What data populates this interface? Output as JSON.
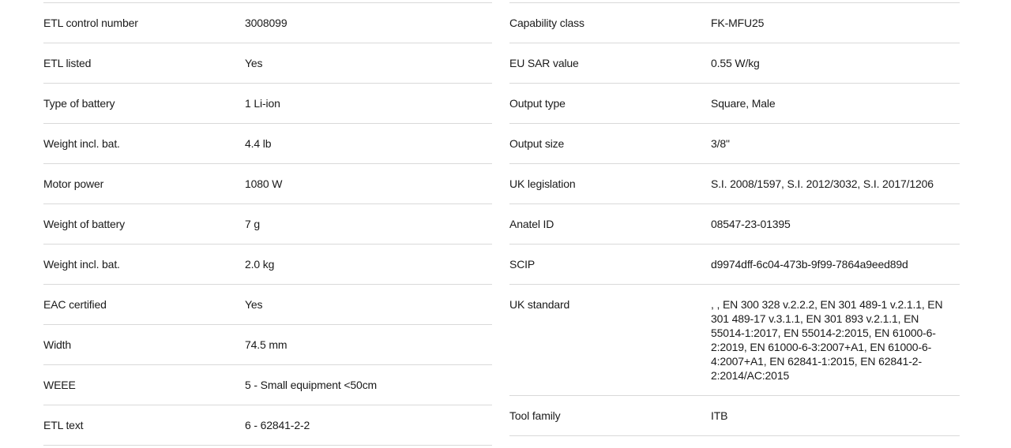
{
  "colors": {
    "text": "#1a1a1a",
    "divider": "#d9d9d9",
    "background": "#ffffff"
  },
  "spec_table": {
    "left_column": {
      "rows": [
        {
          "label": "ETL control number",
          "value": "3008099"
        },
        {
          "label": "ETL listed",
          "value": "Yes"
        },
        {
          "label": "Type of battery",
          "value": "1 Li-ion"
        },
        {
          "label": "Weight incl. bat.",
          "value": "4.4 lb"
        },
        {
          "label": "Motor power",
          "value": "1080 W"
        },
        {
          "label": "Weight of battery",
          "value": "7 g"
        },
        {
          "label": "Weight incl. bat.",
          "value": "2.0 kg"
        },
        {
          "label": "EAC certified",
          "value": "Yes"
        },
        {
          "label": "Width",
          "value": "74.5 mm"
        },
        {
          "label": "WEEE",
          "value": "5 - Small equipment <50cm"
        },
        {
          "label": "ETL text",
          "value": "6 - 62841-2-2"
        }
      ]
    },
    "right_column": {
      "rows": [
        {
          "label": "Capability class",
          "value": "FK-MFU25"
        },
        {
          "label": "EU SAR value",
          "value": "0.55 W/kg"
        },
        {
          "label": "Output type",
          "value": "Square, Male"
        },
        {
          "label": "Output size",
          "value": "3/8\""
        },
        {
          "label": "UK legislation",
          "value": "S.I. 2008/1597, S.I. 2012/3032, S.I. 2017/1206"
        },
        {
          "label": "Anatel ID",
          "value": "08547-23-01395"
        },
        {
          "label": "SCIP",
          "value": "d9974dff-6c04-473b-9f99-7864a9eed89d"
        },
        {
          "label": "UK standard",
          "value": ", , EN 300 328 v.2.2.2, EN 301 489-1 v.2.1.1, EN 301 489-17 v.3.1.1, EN 301 893 v.2.1.1, EN 55014-1:2017, EN 55014-2:2015, EN 61000-6-2:2019, EN 61000-6-3:2007+A1, EN 61000-6-4:2007+A1, EN 62841-1:2015, EN 62841-2-2:2014/AC:2015"
        },
        {
          "label": "Tool family",
          "value": "ITB"
        }
      ]
    }
  }
}
